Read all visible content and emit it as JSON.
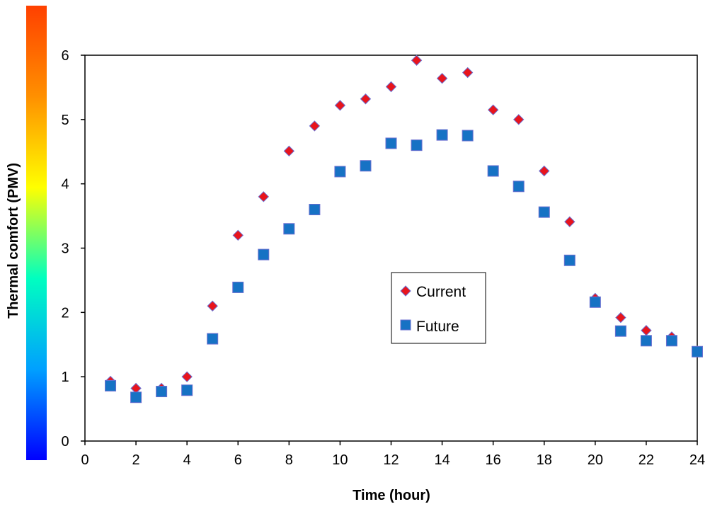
{
  "chart_data": {
    "type": "scatter",
    "xlabel": "Time (hour)",
    "ylabel": "Thermal comfort (PMV)",
    "xlim": [
      0,
      24
    ],
    "ylim": [
      0,
      6
    ],
    "xticks": [
      "0",
      "2",
      "4",
      "6",
      "8",
      "10",
      "12",
      "14",
      "16",
      "18",
      "20",
      "22",
      "24"
    ],
    "yticks": [
      "0",
      "1",
      "2",
      "3",
      "4",
      "5",
      "6"
    ],
    "grid": false,
    "legend_position": "center-right",
    "colorbar": {
      "colors": [
        "#0000ff",
        "#00a0ff",
        "#00ffc0",
        "#ffff00",
        "#ff9000",
        "#ff4000"
      ]
    },
    "series": [
      {
        "name": "Current",
        "marker": "diamond",
        "color": "#e8141c",
        "x": [
          1,
          2,
          3,
          4,
          5,
          6,
          7,
          8,
          9,
          10,
          11,
          12,
          13,
          14,
          15,
          16,
          17,
          18,
          19,
          20,
          21,
          22,
          23,
          24
        ],
        "y": [
          0.93,
          0.82,
          0.82,
          1.0,
          2.1,
          3.2,
          3.8,
          4.51,
          4.9,
          5.22,
          5.32,
          5.51,
          5.92,
          5.64,
          5.73,
          5.15,
          5.0,
          4.2,
          3.41,
          2.22,
          1.92,
          1.72,
          1.62,
          1.4
        ]
      },
      {
        "name": "Future",
        "marker": "square",
        "color": "#1672c4",
        "x": [
          1,
          2,
          3,
          4,
          5,
          6,
          7,
          8,
          9,
          10,
          11,
          12,
          13,
          14,
          15,
          16,
          17,
          18,
          19,
          20,
          21,
          22,
          23,
          24
        ],
        "y": [
          0.86,
          0.68,
          0.77,
          0.79,
          1.59,
          2.39,
          2.9,
          3.3,
          3.6,
          4.19,
          4.28,
          4.63,
          4.6,
          4.76,
          4.75,
          4.2,
          3.96,
          3.56,
          2.81,
          2.16,
          1.71,
          1.56,
          1.56,
          1.39
        ]
      }
    ]
  }
}
